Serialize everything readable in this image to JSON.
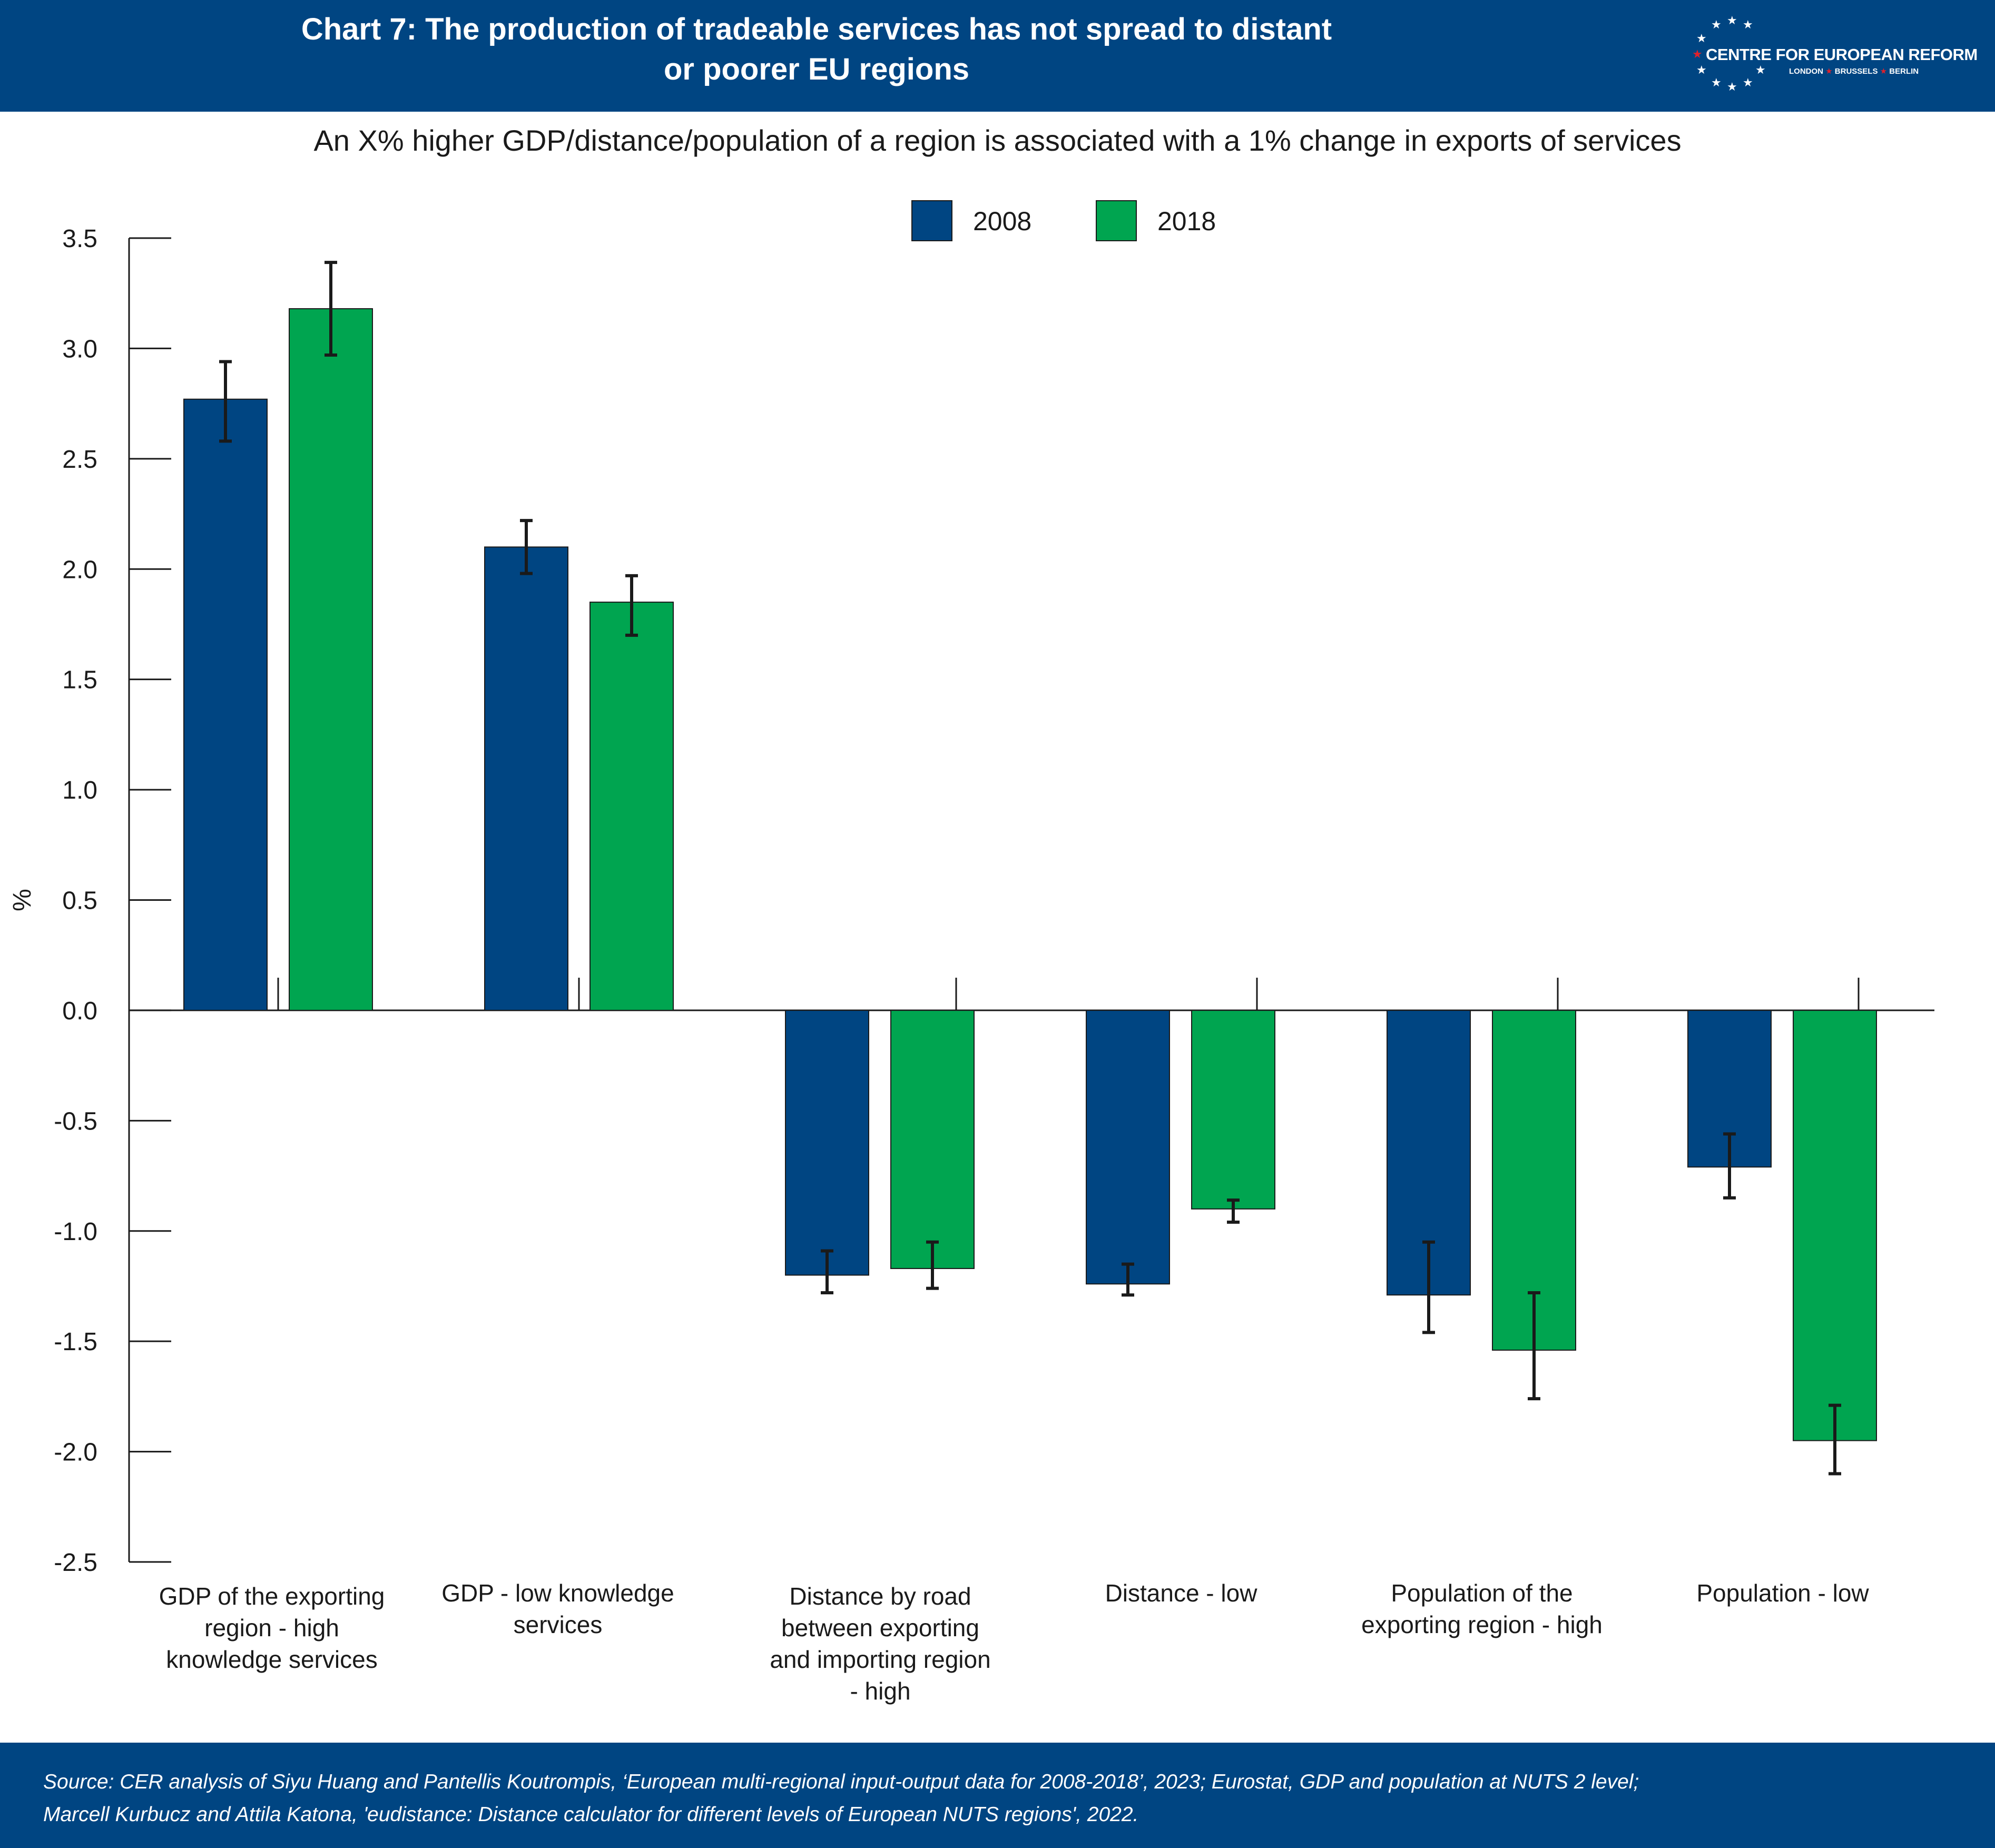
{
  "header": {
    "title_line1": "Chart 7: The production of tradeable services has not spread to distant",
    "title_line2": "or poorer EU regions",
    "logo_main": "CENTRE FOR EUROPEAN REFORM",
    "logo_city1": "LONDON",
    "logo_city2": "BRUSSELS",
    "logo_city3": "BERLIN",
    "logo_sep": "★"
  },
  "footer": {
    "source_line1": "Source: CER analysis of Siyu Huang and Pantellis Koutrompis, ‘European multi-regional input-output data for 2008-2018’, 2023; Eurostat, GDP and population at NUTS 2 level;",
    "source_line2": "Marcell Kurbucz and Attila Katona, 'eudistance: Distance calculator for different levels of European NUTS regions', 2022."
  },
  "colors": {
    "header_bg": "#004582",
    "series_2008": "#004582",
    "series_2018": "#00a550",
    "error_bar": "#1a1a1a",
    "logo_accent": "#e0212b"
  },
  "chart_data": {
    "type": "bar",
    "title": "An X% higher GDP/distance/population of a region is associated with a 1% change in exports of services",
    "xlabel": "",
    "ylabel": "%",
    "ylim": [
      -2.5,
      3.5
    ],
    "yticks": [
      3.5,
      3.0,
      2.5,
      2.0,
      1.5,
      1.0,
      0.5,
      0.0,
      -0.5,
      -1.0,
      -1.5,
      -2.0,
      -2.5
    ],
    "ytick_labels": [
      "3.5",
      "3.0",
      "2.5",
      "2.0",
      "1.5",
      "1.0",
      "0.5",
      "0.0",
      "-0.5",
      "-1.0",
      "-1.5",
      "-2.0",
      "-2.5"
    ],
    "categories": [
      "GDP of the exporting region - high knowledge services",
      "GDP - low knowledge services",
      "Distance by road between exporting and importing region - high",
      "Distance - low",
      "Population of the exporting region - high",
      "Population - low"
    ],
    "category_lines": [
      [
        "GDP of the exporting",
        "region - high",
        "knowledge services"
      ],
      [
        "GDP - low knowledge",
        "services"
      ],
      [
        "Distance by road",
        "between exporting",
        "and importing region",
        "- high"
      ],
      [
        "Distance - low"
      ],
      [
        "Population of the",
        "exporting region - high"
      ],
      [
        "Population - low"
      ]
    ],
    "legend_position": "top-center",
    "grid": false,
    "series": [
      {
        "name": "2008",
        "color": "#004582",
        "values": [
          2.77,
          2.1,
          -1.2,
          -1.24,
          -1.29,
          -0.71
        ],
        "error_low": [
          2.58,
          1.98,
          -1.28,
          -1.29,
          -1.46,
          -0.85
        ],
        "error_high": [
          2.94,
          2.22,
          -1.09,
          -1.15,
          -1.05,
          -0.56
        ]
      },
      {
        "name": "2018",
        "color": "#00a550",
        "values": [
          3.18,
          1.85,
          -1.17,
          -0.9,
          -1.54,
          -1.95
        ],
        "error_low": [
          2.97,
          1.7,
          -1.26,
          -0.96,
          -1.76,
          -2.1
        ],
        "error_high": [
          3.39,
          1.97,
          -1.05,
          -0.86,
          -1.28,
          -1.79
        ]
      }
    ]
  }
}
